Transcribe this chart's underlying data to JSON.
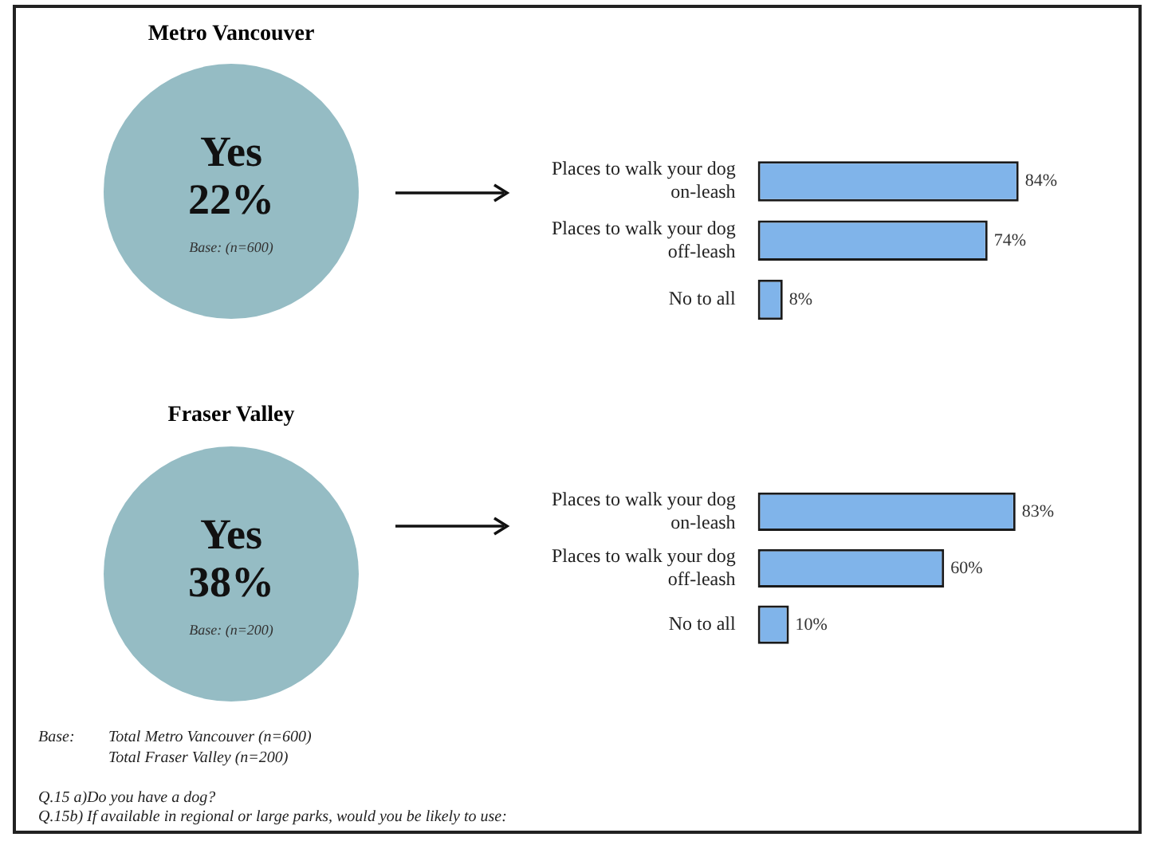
{
  "chart_data": [
    {
      "type": "other",
      "title": "Metro Vancouver",
      "annotations": [
        "Yes",
        "22%",
        "Base: (n=600)"
      ]
    },
    {
      "type": "bar",
      "orientation": "horizontal",
      "categories": [
        "Places to walk your dog on-leash",
        "Places to walk your dog off-leash",
        "No to all"
      ],
      "values": [
        84,
        74,
        8
      ],
      "value_labels": [
        "84%",
        "74%",
        "8%"
      ],
      "color": "#80b4ea"
    },
    {
      "type": "other",
      "title": "Fraser Valley",
      "annotations": [
        "Yes",
        "38%",
        "Base: (n=200)"
      ]
    },
    {
      "type": "bar",
      "orientation": "horizontal",
      "categories": [
        "Places to walk your dog on-leash",
        "Places to walk your dog off-leash",
        "No to all"
      ],
      "values": [
        83,
        60,
        10
      ],
      "value_labels": [
        "83%",
        "60%",
        "10%"
      ],
      "color": "#80b4ea"
    },
    {
      "type": "other",
      "annotations": [
        "Base:",
        "Total Metro Vancouver (n=600)",
        "Total Fraser Valley (n=200)",
        "Q.15 a)Do you have a dog?",
        "Q.15b) If available in regional or large parks, would you be likely to use:"
      ]
    }
  ]
}
